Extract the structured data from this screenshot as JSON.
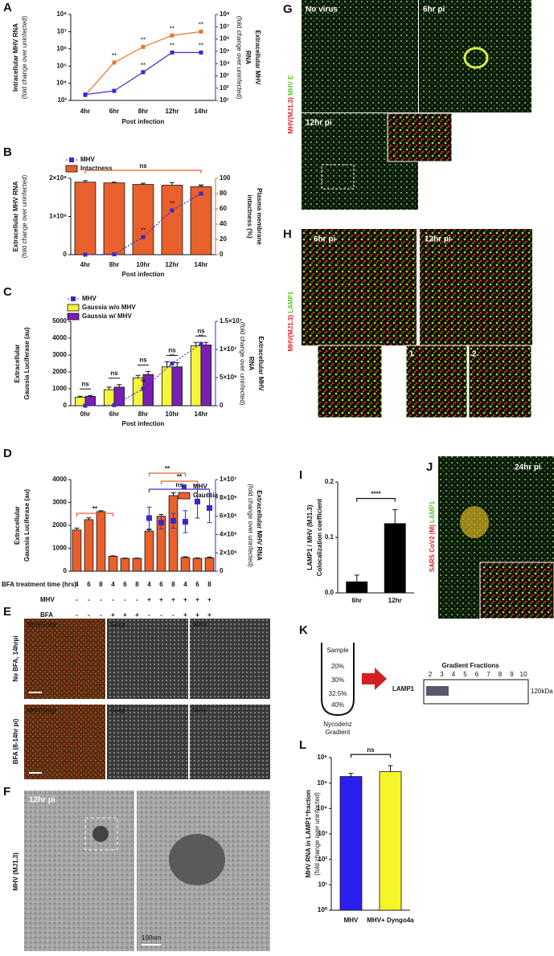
{
  "panel_letters": [
    "A",
    "B",
    "C",
    "D",
    "E",
    "F",
    "G",
    "H",
    "I",
    "J",
    "K",
    "L"
  ],
  "chart_data": [
    {
      "type": "line",
      "ylabel": [
        "Intracellular MHV RNA"
      ],
      "ylabel_sub": "(fold change over uninfected)",
      "ylabel_color": "#e8772e",
      "y2label": [
        "Extracellular MHV",
        "RNA"
      ],
      "y2label_sub": "(fold change over uninfected)",
      "y2label_color": "#3b28cc",
      "xlabel": "Post infection",
      "categories": [
        "4hr",
        "6hr",
        "8hr",
        "12hr",
        "14hr"
      ],
      "ylog": true,
      "ylim": [
        1000,
        100000000
      ],
      "yticks": [
        {
          "value": 1000,
          "label": "10³"
        },
        {
          "value": 10000,
          "label": "10⁴"
        },
        {
          "value": 100000,
          "label": "10⁵"
        },
        {
          "value": 1000000,
          "label": "10⁶"
        },
        {
          "value": 10000000,
          "label": "10⁷"
        },
        {
          "value": 100000000,
          "label": "10⁸"
        }
      ],
      "y2log": true,
      "y2lim": [
        10,
        100000000
      ],
      "y2ticks": [
        {
          "value": 10,
          "label": "10¹"
        },
        {
          "value": 100,
          "label": "10²"
        },
        {
          "value": 1000,
          "label": "10³"
        },
        {
          "value": 10000,
          "label": "10⁴"
        },
        {
          "value": 100000,
          "label": "10⁵"
        },
        {
          "value": 1000000,
          "label": "10⁶"
        },
        {
          "value": 10000000,
          "label": "10⁷"
        },
        {
          "value": 100000000,
          "label": "10⁸"
        }
      ],
      "series": [
        {
          "color": "#e8772e",
          "values": [
            2000,
            160000,
            1300000,
            6000000,
            10000000
          ],
          "value_labels": [
            null,
            "**",
            "**",
            "**",
            "**"
          ]
        },
        {
          "color": "#3b28cc",
          "axis": "y2",
          "values": [
            30,
            60,
            2000,
            80000,
            80000
          ],
          "value_labels": [
            null,
            null,
            "**",
            "**",
            "**"
          ]
        }
      ]
    },
    {
      "type": "bar",
      "ylabel": [
        "Extracellular MHV RNA"
      ],
      "ylabel_sub": "(fold change over uninfected)",
      "ylabel_color": "#3b28cc",
      "y2label": [
        "Plasma membrane",
        "intactness (%)"
      ],
      "y2label_color": "#e8602c",
      "xlabel": "Post infection",
      "categories": [
        "4hr",
        "8hr",
        "10hr",
        "12hr",
        "14hr"
      ],
      "ylim": [
        0,
        200000000
      ],
      "yticks": [
        0,
        {
          "value": 100000000,
          "label": "1×10⁸"
        },
        {
          "value": 200000000,
          "label": "2×10⁸"
        }
      ],
      "y2lim": [
        0,
        100
      ],
      "y2ticks": [
        0,
        20,
        40,
        60,
        80,
        100
      ],
      "series": [
        {
          "name": "MHV",
          "type": "line",
          "dashed": true,
          "color": "#3b28cc",
          "values": [
            0,
            1000000,
            46000000,
            116000000,
            160000000
          ],
          "value_labels": [
            null,
            null,
            "**",
            "**",
            "**"
          ]
        },
        {
          "name": "Intactness",
          "type": "bar",
          "axis": "y2",
          "color": "#e8602c",
          "values": [
            95,
            94,
            92,
            91,
            89
          ],
          "errors": [
            2,
            1,
            1.5,
            3.5,
            2
          ]
        }
      ],
      "annotations": [
        "ns"
      ]
    },
    {
      "type": "bar",
      "ylabel": [
        "Extracellular",
        "Gaussia Luciferase (au)"
      ],
      "y2label": [
        "Extracellular MHV",
        "RNA"
      ],
      "y2label_sub": "(fold change over uninfected)",
      "y2label_color": "#3b28cc",
      "xlabel": "Post infection",
      "categories": [
        "0hr",
        "6hr",
        "8hr",
        "10hr",
        "14hr"
      ],
      "ylim": [
        0,
        5000
      ],
      "yticks": [
        0,
        1000,
        2000,
        3000,
        4000,
        5000
      ],
      "y2lim": [
        0,
        15000000
      ],
      "y2ticks": [
        0,
        {
          "value": 5000000,
          "label": "5×10⁶"
        },
        {
          "value": 10000000,
          "label": "1×10⁷"
        },
        {
          "value": 15000000,
          "label": "1.5×10⁷"
        }
      ],
      "series": [
        {
          "name": "MHV",
          "type": "line",
          "dashed": true,
          "axis": "y2",
          "color": "#3b28cc",
          "values": [
            0,
            100000,
            3000000,
            7500000,
            11000000
          ],
          "value_labels": [
            null,
            null,
            "**",
            "**",
            "**"
          ]
        },
        {
          "name": "Gaussia w/o MHV",
          "type": "bar",
          "color": "#f5f53a",
          "values": [
            500,
            950,
            1650,
            2300,
            3550
          ],
          "errors": [
            60,
            150,
            150,
            300,
            200
          ]
        },
        {
          "name": "Gaussia w/ MHV",
          "type": "bar",
          "color": "#7a1fb5",
          "values": [
            550,
            1100,
            1850,
            2300,
            3600
          ],
          "errors": [
            60,
            150,
            180,
            250,
            150
          ]
        }
      ],
      "annotations": [
        "ns",
        "ns",
        "ns",
        "ns",
        "ns"
      ]
    },
    {
      "type": "bar",
      "ylabel": [
        "Extracellular",
        "Gaussia Luciferase (au)"
      ],
      "ylabel_color": "#e8602c",
      "y2label": [
        "Extracellular MHV RNA"
      ],
      "y2label_sub": "(fold change over uninfected)",
      "y2label_color": "#3b28cc",
      "categories_label": "BFA treatment time (hrs)",
      "categories": [
        "4",
        "6",
        "8",
        "4",
        "6",
        "8",
        "4",
        "6",
        "8",
        "4",
        "6",
        "8"
      ],
      "table_rows": [
        {
          "label": "MHV",
          "cells": [
            "-",
            "-",
            "-",
            "-",
            "-",
            "-",
            "+",
            "+",
            "+",
            "+",
            "+",
            "+"
          ]
        },
        {
          "label": "BFA",
          "cells": [
            "-",
            "-",
            "-",
            "+",
            "+",
            "+",
            "-",
            "-",
            "-",
            "+",
            "+",
            "+"
          ]
        }
      ],
      "ylim": [
        0,
        4000
      ],
      "yticks": [
        0,
        1000,
        2000,
        3000,
        4000
      ],
      "y2lim": [
        0,
        10000000
      ],
      "y2ticks": [
        0,
        {
          "value": 2000000,
          "label": "2×10⁶"
        },
        {
          "value": 4000000,
          "label": "4×10⁶"
        },
        {
          "value": 6000000,
          "label": "6×10⁶"
        },
        {
          "value": 8000000,
          "label": "8×10⁶"
        },
        {
          "value": 10000000,
          "label": "1×10⁷"
        }
      ],
      "series": [
        {
          "name": "MHV",
          "type": "scatter",
          "axis": "y2",
          "color": "#3b28cc",
          "values": [
            null,
            null,
            null,
            null,
            null,
            null,
            5800000,
            5300000,
            5500000,
            5400000,
            7600000,
            6900000
          ],
          "errors": [
            null,
            null,
            null,
            null,
            null,
            null,
            1200000,
            700000,
            800000,
            1200000,
            1800000,
            1600000
          ]
        },
        {
          "name": "Gaussia",
          "type": "bar",
          "color": "#e8602c",
          "values": [
            1800,
            2250,
            2600,
            650,
            560,
            560,
            1750,
            2400,
            3300,
            600,
            560,
            580
          ],
          "errors": [
            80,
            80,
            40,
            20,
            15,
            15,
            60,
            80,
            120,
            30,
            20,
            40
          ]
        }
      ],
      "annotations": [
        "**",
        "**",
        "**",
        "ns"
      ]
    },
    {
      "type": "bar",
      "ylabel": [
        "LAMP1 / MHV (MJ1.3)",
        "Colocalization  coefficient"
      ],
      "categories": [
        "6hr",
        "12hr"
      ],
      "ylim": [
        0,
        0.2
      ],
      "yticks": [
        {
          "value": 0,
          "label": "0.0"
        },
        0.1,
        0.2
      ],
      "series": [
        {
          "type": "bar",
          "color": "#000000",
          "values": [
            0.02,
            0.125
          ],
          "errors": [
            0.012,
            0.025
          ]
        }
      ],
      "annotations": [
        "****"
      ]
    },
    {
      "type": "bar",
      "ylabel": [
        "MHV RNA in LAMP1⁺fraction"
      ],
      "ylabel_sub": "(fold change over uninfected)",
      "categories": [
        "MHV",
        "MHV+ Dyngo4a"
      ],
      "ylog": true,
      "ylim": [
        1,
        1000000
      ],
      "yticks": [
        {
          "value": 1,
          "label": "10⁰"
        },
        {
          "value": 10,
          "label": "10¹"
        },
        {
          "value": 100,
          "label": "10²"
        },
        {
          "value": 1000,
          "label": "10³"
        },
        {
          "value": 10000,
          "label": "10⁴"
        },
        {
          "value": 100000,
          "label": "10⁵"
        },
        {
          "value": 1000000,
          "label": "10⁶"
        }
      ],
      "series": [
        {
          "type": "bar",
          "colors": [
            "#2b1ff0",
            "#f5f52a"
          ],
          "values": [
            180000,
            280000
          ],
          "errors": [
            60000,
            200000
          ]
        }
      ],
      "annotations": [
        "ns"
      ]
    }
  ],
  "images": {
    "E": {
      "row_labels": [
        "No BFA, 14hrpi",
        "BFA (8-14hr pi)"
      ],
      "merge_red": "MHV",
      "merge_green": "Golgi",
      "channel_labels": [
        "Golgi",
        "MHV"
      ]
    },
    "F": {
      "side_label": "MHV (MJ1.3)",
      "time": "12hr pi",
      "scale": "100nm"
    },
    "G": {
      "side_red": "MHV(MJ1.3)",
      "side_green": "MHV E",
      "labels": [
        "No virus",
        "6hr pi",
        "12hr pi"
      ]
    },
    "H": {
      "side_red": "MHV(MJ1.3)",
      "side_green": "LAMP1",
      "labels": [
        "6hr pi",
        "12hr pi"
      ],
      "insets": [
        "1",
        "2"
      ]
    },
    "J": {
      "side_red": "SARS CoV2 (M)",
      "side_green": "LAMP1",
      "label": "24hr pi"
    },
    "K": {
      "tube_labels": [
        "Sample",
        "20%",
        "30%",
        "32.5%",
        "40%"
      ],
      "tube_caption": [
        "Nycodenz",
        "Gradient"
      ],
      "blot_title": "Gradient Fractions",
      "fractions": [
        "2",
        "3",
        "4",
        "5",
        "6",
        "7",
        "8",
        "9",
        "10"
      ],
      "band": "LAMP1",
      "size": "120kDa"
    }
  }
}
